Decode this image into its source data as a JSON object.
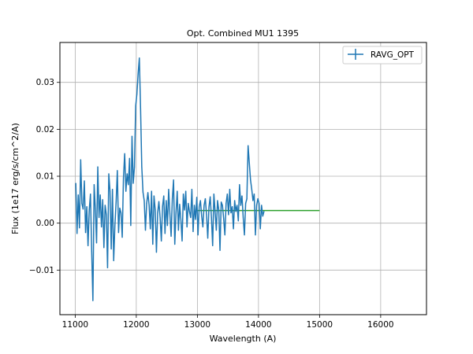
{
  "chart_data": {
    "type": "line",
    "title": "Opt. Combined MU1 1395",
    "xlabel": "Wavelength (A)",
    "ylabel": "Flux (1e17 erg/s/cm^2/A)",
    "xlim": [
      10750,
      16750
    ],
    "ylim": [
      -0.0195,
      0.0385
    ],
    "grid": true,
    "legend_position": "top-right",
    "x_ticks": [
      11000,
      12000,
      13000,
      14000,
      15000,
      16000
    ],
    "x_tick_labels": [
      "11000",
      "12000",
      "13000",
      "14000",
      "15000",
      "16000"
    ],
    "y_ticks": [
      -0.01,
      0.0,
      0.01,
      0.02,
      0.03
    ],
    "y_tick_labels": [
      "−0.01",
      "0.00",
      "0.01",
      "0.02",
      "0.03"
    ],
    "series": [
      {
        "name": "RAVG_OPT",
        "color": "#1f77b4",
        "style": "errorbar",
        "x_start": 11010,
        "x_step": 20,
        "values": [
          0.0085,
          -0.0022,
          0.006,
          -0.001,
          0.0135,
          0.0042,
          0.003,
          0.009,
          -0.002,
          0.0035,
          -0.0048,
          0.0028,
          0.0062,
          -0.006,
          -0.0165,
          0.0082,
          0.003,
          -0.0042,
          0.012,
          0.0012,
          0.006,
          -0.0008,
          0.005,
          -0.0052,
          0.0038,
          0.0018,
          -0.0095,
          0.0105,
          0.0068,
          -0.0055,
          0.0072,
          -0.008,
          -0.0005,
          0.0045,
          0.0112,
          -0.002,
          0.0032,
          0.0022,
          -0.003,
          0.0096,
          0.0148,
          0.0068,
          0.0105,
          0.0082,
          0.0138,
          -0.0005,
          0.0185,
          0.0085,
          0.012,
          0.025,
          0.0275,
          0.0318,
          0.0352,
          0.0245,
          0.012,
          0.0066,
          0.0048,
          -0.0015,
          0.0042,
          0.0065,
          0.0038,
          -0.0012,
          0.0068,
          -0.0045,
          0.0058,
          0.0028,
          -0.0062,
          0.0022,
          0.0046,
          0.0012,
          -0.0038,
          0.0036,
          0.0058,
          -0.0022,
          0.0048,
          -0.0005,
          0.0072,
          0.002,
          -0.0028,
          0.0052,
          0.0092,
          -0.0045,
          0.0022,
          0.0068,
          -0.0015,
          0.004,
          0.0008,
          -0.0038,
          0.0062,
          0.0028,
          0.0068,
          -0.0008,
          0.0042,
          0.0025,
          0.0012,
          0.0072,
          -0.0018,
          0.0038,
          0.0008,
          0.0055,
          -0.0025,
          0.0035,
          0.0048,
          0.0015,
          -0.0008,
          0.0038,
          0.0052,
          0.0018,
          -0.0032,
          0.0035,
          0.0056,
          0.0012,
          -0.0048,
          0.0062,
          0.0025,
          -0.0015,
          0.0048,
          0.0028,
          -0.0058,
          0.0045,
          0.0038,
          0.001,
          -0.0025,
          0.0042,
          0.0062,
          0.0018,
          0.0072,
          0.0022,
          0.0035,
          -0.0012,
          0.0048,
          0.0025,
          0.0038,
          0.0005,
          0.0082,
          0.0038,
          0.0058,
          0.0012,
          -0.0025,
          0.0042,
          0.0052,
          0.0165,
          0.0128,
          0.0092,
          0.0072,
          0.0048,
          0.0062,
          -0.0025,
          0.0038,
          0.0052,
          0.0042,
          -0.0012,
          0.0038,
          0.0015,
          0.0025
        ]
      },
      {
        "name": "",
        "color": "#2ca02c",
        "style": "line",
        "x": [
          13000,
          15000
        ],
        "values": [
          0.0027,
          0.0027
        ]
      }
    ],
    "legend": [
      {
        "label": "RAVG_OPT",
        "color": "#1f77b4"
      }
    ]
  }
}
